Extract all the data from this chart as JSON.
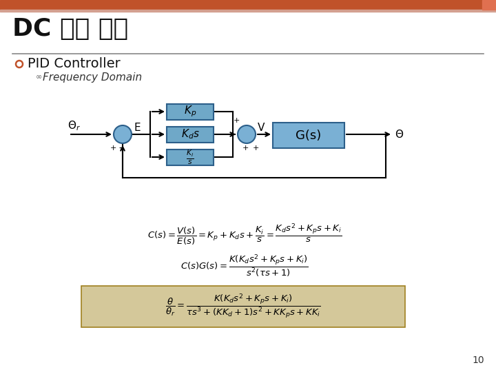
{
  "title_korean": "DC 모터 제어",
  "bullet1": "PID Controller",
  "bullet2": "Frequency Domain",
  "bg_color": "#ffffff",
  "header_bar_color": "#c0522a",
  "header_bar_color2": "#d4a090",
  "block_fill": "#6fa8c8",
  "block_edge": "#2c5f8a",
  "circle_fill": "#7ab0d4",
  "circle_edge": "#2c5f8a",
  "gs_fill": "#7ab0d4",
  "gs_edge": "#2c5f8a",
  "eq_box_fill": "#d4c89a",
  "eq_box_edge": "#a08020",
  "page_number": "10"
}
